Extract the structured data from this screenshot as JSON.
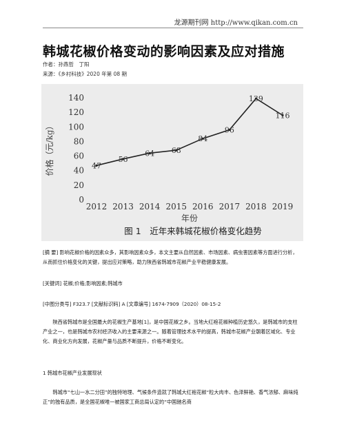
{
  "header": {
    "site": "龙源期刊网 http://www.qikan.com.cn"
  },
  "article": {
    "title": "韩城花椒价格变动的影响因素及应对措施",
    "authors": "作者：孙燕哲　丁阳",
    "source": "来源：《乡村科技》2020 年第 08 期"
  },
  "chart_data": {
    "type": "line",
    "title": "图 1　近年来韩城花椒价格变化趋势",
    "xlabel": "年份",
    "ylabel": "价格（元/kg）",
    "categories": [
      "2012",
      "2013",
      "2014",
      "2015",
      "2016",
      "2017",
      "2018",
      "2019"
    ],
    "series": [
      {
        "values": [
          47,
          56,
          64,
          68,
          84,
          96,
          139,
          116
        ]
      }
    ],
    "ylim": [
      0,
      140
    ],
    "yticks": [
      "0",
      "20",
      "40",
      "60",
      "80",
      "100",
      "120",
      "140"
    ],
    "grid": false,
    "line_color": "#222222",
    "background": "#ececec"
  },
  "body": {
    "abstract": "[摘 要] 影响花椒价格的因素众多，其影响因素众多，本文主要从自然因素、市场因素、病虫害因素等方面进行分析，从而抓住价格变化的关键，提出应对策略，助力陕西省韩城市花椒产业平稳健康发展。",
    "keywords": "[关键词] 花椒;价格;影响因素;韩城市",
    "classification": "[中图分类号] F323.7 [文献标识码] A [文章编号] 1674-7909（2020）08-15-2",
    "intro": "陕西省韩城市是全国最大的花椒生产基地[1]，是中国花椒之乡。当地大红袍花椒种植历史悠久，是韩城市的支柱产业之一，也是韩城市农村经济收入的主要来源之一。随着管理技术水平的提高，韩城市花椒产业朝着区域化、专业化、商业化方向发展，花椒产量与品质不断提升，价格不断变化。",
    "section1": "1 韩城市花椒产业发展现状",
    "section1_text": "韩城市“七山一水二分田”的独特地理、气候条件造就了韩城大红袍花椒“粒大肉丰、色泽鲜艳、香气浓郁、麻味纯正”的独有品质，是全国花椒唯一被国家工商总局认定的“中国驰名商"
  }
}
